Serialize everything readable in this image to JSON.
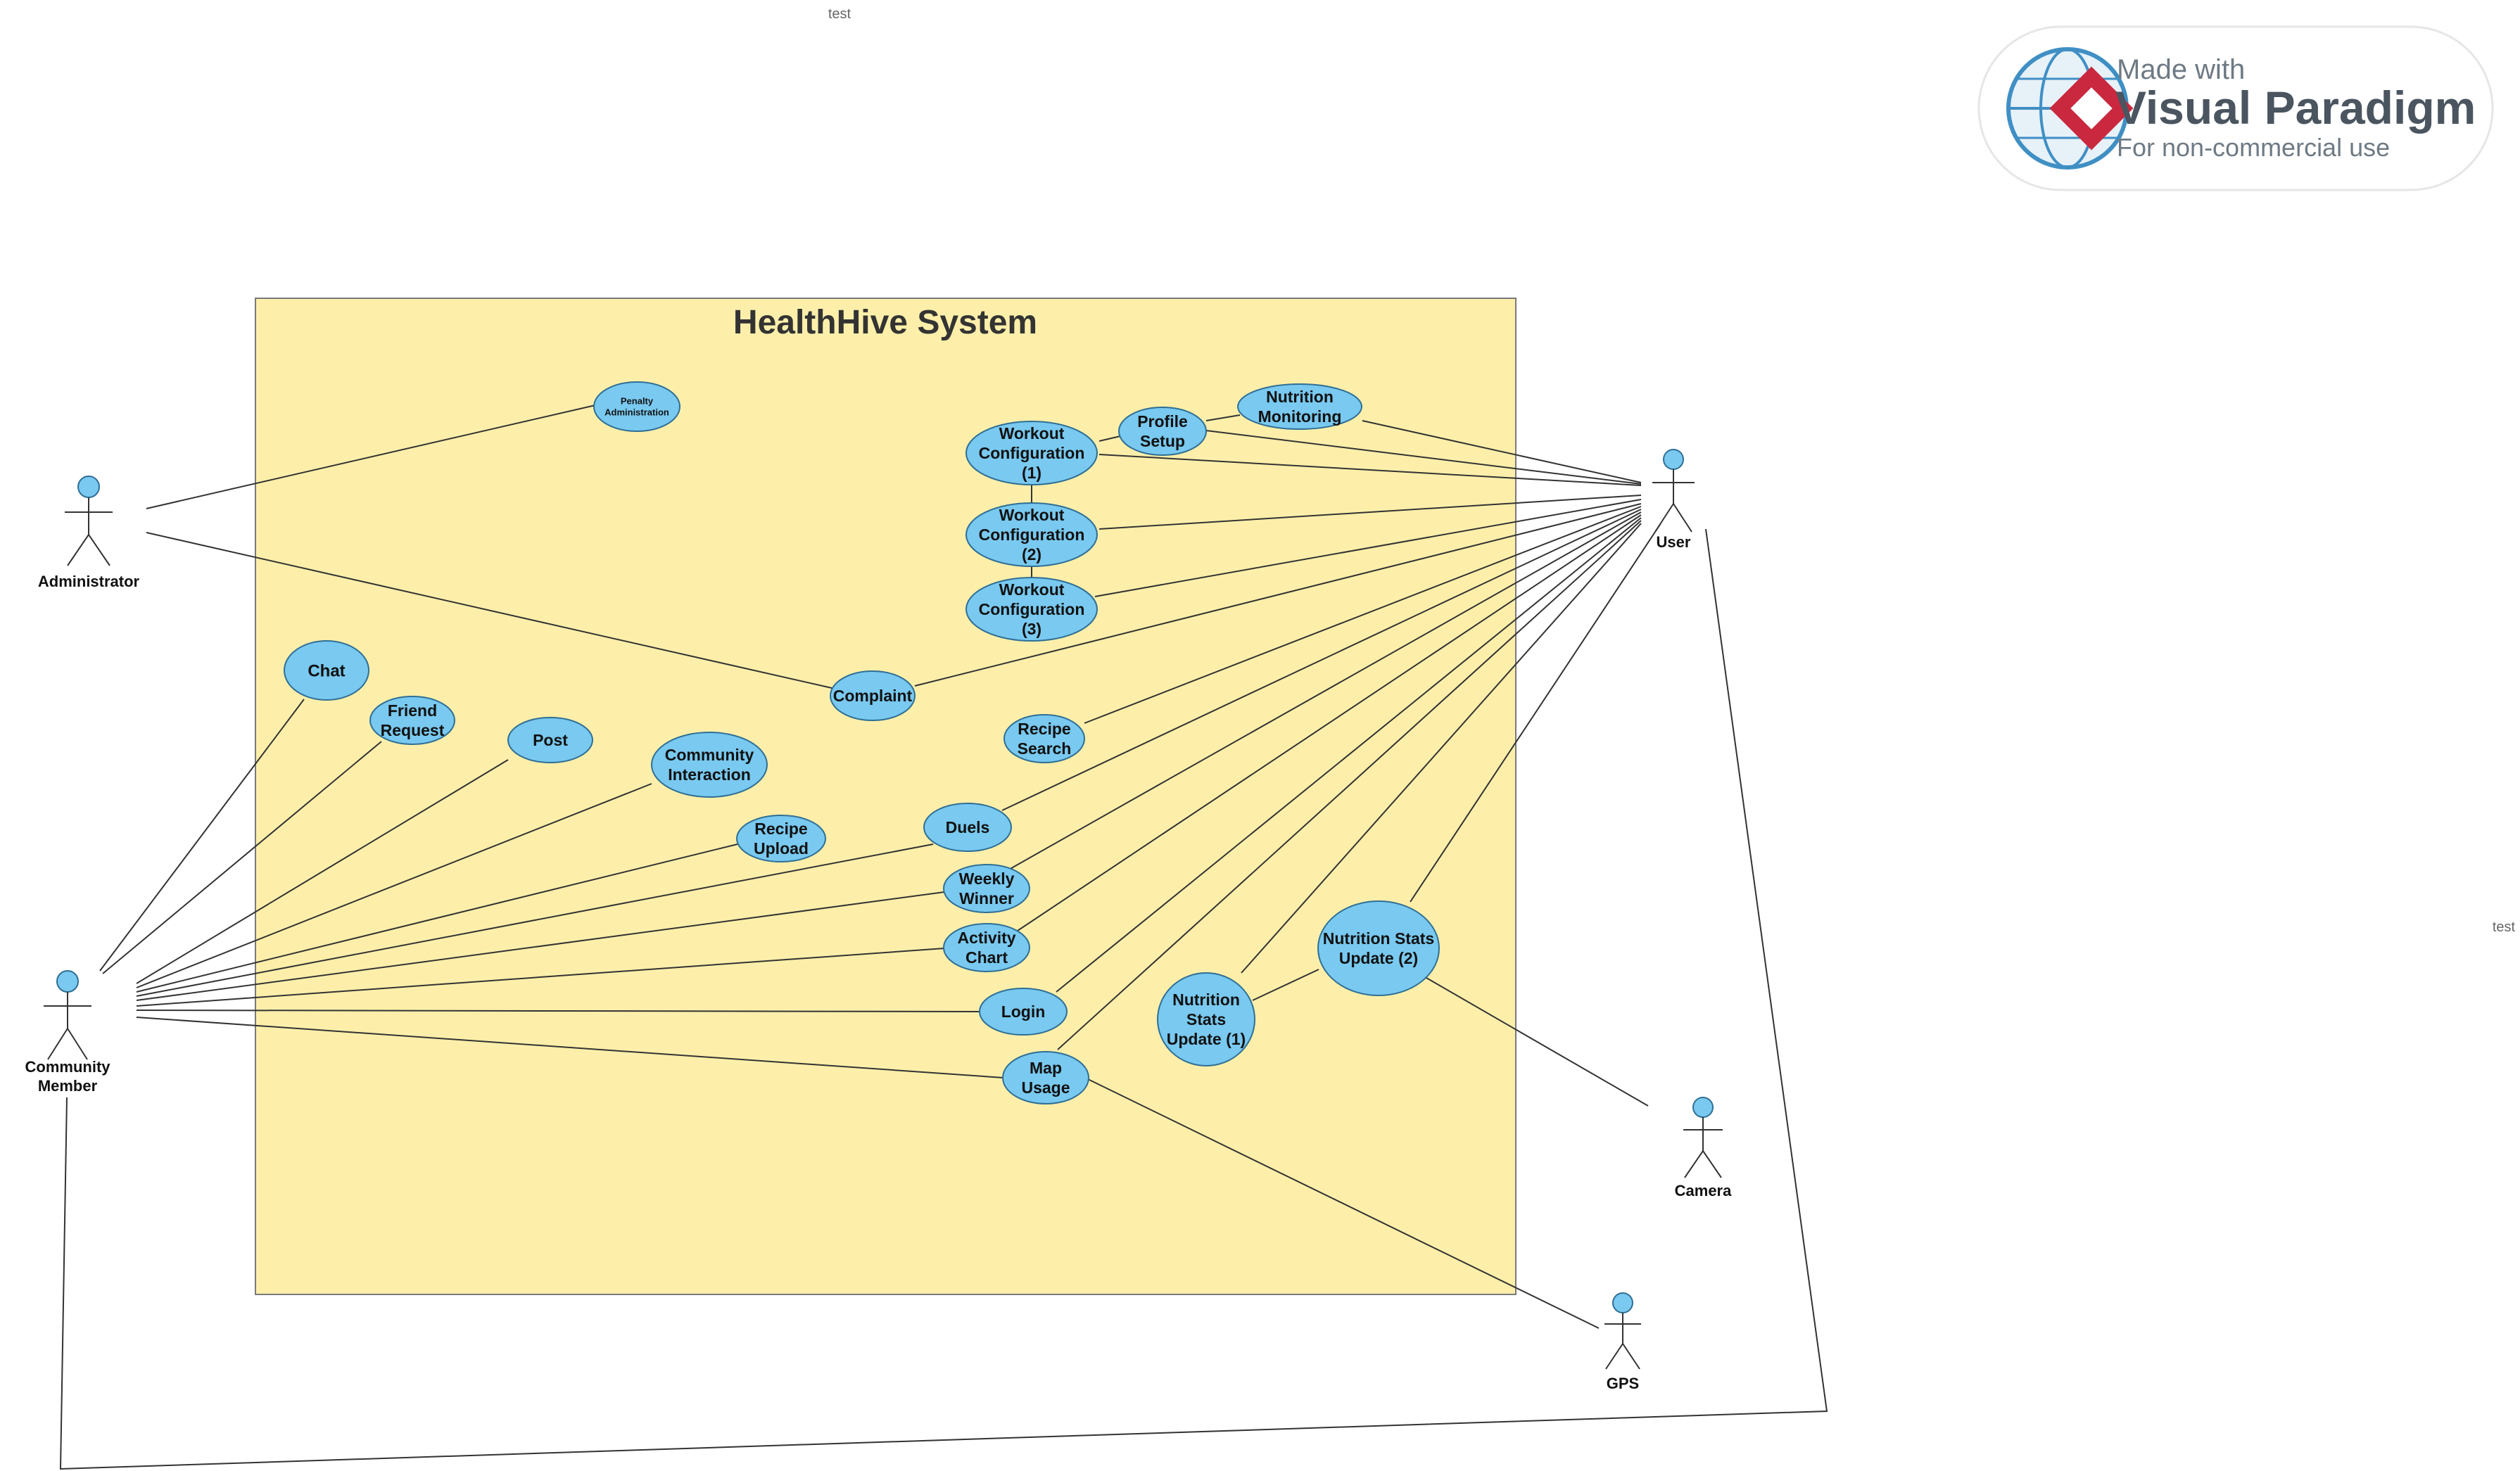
{
  "system": {
    "title": "HealthHive System"
  },
  "notes": {
    "top": "test",
    "right": "test"
  },
  "watermark": {
    "line1": "Made with",
    "line2": "Visual Paradigm",
    "line3": "For non-commercial use"
  },
  "actors": {
    "administrator": {
      "label": "Administrator"
    },
    "community_member": {
      "label": "Community Member"
    },
    "user": {
      "label": "User"
    },
    "camera": {
      "label": "Camera"
    },
    "gps": {
      "label": "GPS"
    }
  },
  "use_cases": {
    "penalty_admin": {
      "label": "Penalty Administration"
    },
    "workout_config_1": {
      "label": "Workout Configuration (1)"
    },
    "profile_setup": {
      "label": "Profile Setup"
    },
    "nutrition_monitoring": {
      "label": "Nutrition Monitoring"
    },
    "workout_config_2": {
      "label": "Workout Configuration (2)"
    },
    "workout_config_3": {
      "label": "Workout Configuration (3)"
    },
    "chat": {
      "label": "Chat"
    },
    "friend_request": {
      "label": "Friend Request"
    },
    "post": {
      "label": "Post"
    },
    "community_interaction": {
      "label": "Community Interaction"
    },
    "complaint": {
      "label": "Complaint"
    },
    "recipe_search": {
      "label": "Recipe Search"
    },
    "recipe_upload": {
      "label": "Recipe Upload"
    },
    "duels": {
      "label": "Duels"
    },
    "weekly_winner": {
      "label": "Weekly Winner"
    },
    "activity_chart": {
      "label": "Activity Chart"
    },
    "login": {
      "label": "Login"
    },
    "map_usage": {
      "label": "Map Usage"
    },
    "nutrition_stats_1": {
      "label": "Nutrition Stats Update (1)"
    },
    "nutrition_stats_2": {
      "label": "Nutrition Stats Update (2)"
    }
  },
  "colors": {
    "system_fill": "#fdefaa",
    "system_stroke": "#7a7a7a",
    "use_case_fill": "#79c9f0",
    "use_case_stroke": "#2f6f95",
    "actor_head": "#79c9f0",
    "line": "#333333"
  }
}
